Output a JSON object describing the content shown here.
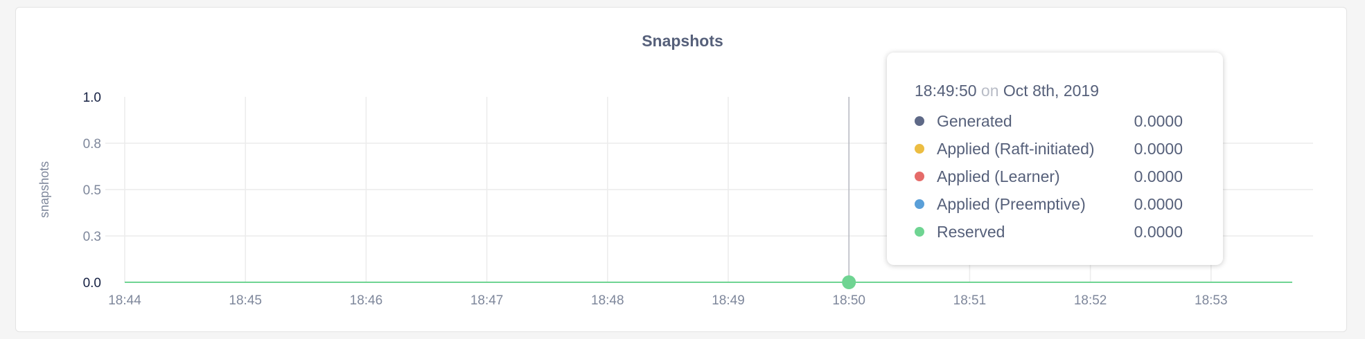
{
  "chart_data": {
    "type": "line",
    "title": "Snapshots",
    "ylabel": "snapshots",
    "xlabel": "",
    "ylim": [
      0,
      1.0
    ],
    "y_ticks": [
      0.0,
      0.25,
      0.5,
      0.75,
      1.0
    ],
    "y_tick_labels": [
      "0.0",
      "0.3",
      "0.5",
      "0.8",
      "1.0"
    ],
    "x_tick_labels": [
      "18:44",
      "18:45",
      "18:46",
      "18:47",
      "18:48",
      "18:49",
      "18:50",
      "18:51",
      "18:52",
      "18:53"
    ],
    "grid": true,
    "series": [
      {
        "name": "Generated",
        "color": "#5e6987",
        "values": [
          0,
          0,
          0,
          0,
          0,
          0,
          0,
          0,
          0,
          0
        ]
      },
      {
        "name": "Applied (Raft-initiated)",
        "color": "#ecbd42",
        "values": [
          0,
          0,
          0,
          0,
          0,
          0,
          0,
          0,
          0,
          0
        ]
      },
      {
        "name": "Applied (Learner)",
        "color": "#e56b69",
        "values": [
          0,
          0,
          0,
          0,
          0,
          0,
          0,
          0,
          0,
          0
        ]
      },
      {
        "name": "Applied (Preemptive)",
        "color": "#5a9fd8",
        "values": [
          0,
          0,
          0,
          0,
          0,
          0,
          0,
          0,
          0,
          0
        ]
      },
      {
        "name": "Reserved",
        "color": "#6fd492",
        "values": [
          0,
          0,
          0,
          0,
          0,
          0,
          0,
          0,
          0,
          0
        ]
      }
    ],
    "hover_x": "18:50"
  },
  "tooltip": {
    "time": "18:49:50",
    "on": "on",
    "date": "Oct 8th, 2019",
    "rows": [
      {
        "label": "Generated",
        "value": "0.0000",
        "color": "#5e6987"
      },
      {
        "label": "Applied (Raft-initiated)",
        "value": "0.0000",
        "color": "#ecbd42"
      },
      {
        "label": "Applied (Learner)",
        "value": "0.0000",
        "color": "#e56b69"
      },
      {
        "label": "Applied (Preemptive)",
        "value": "0.0000",
        "color": "#5a9fd8"
      },
      {
        "label": "Reserved",
        "value": "0.0000",
        "color": "#6fd492"
      }
    ]
  }
}
